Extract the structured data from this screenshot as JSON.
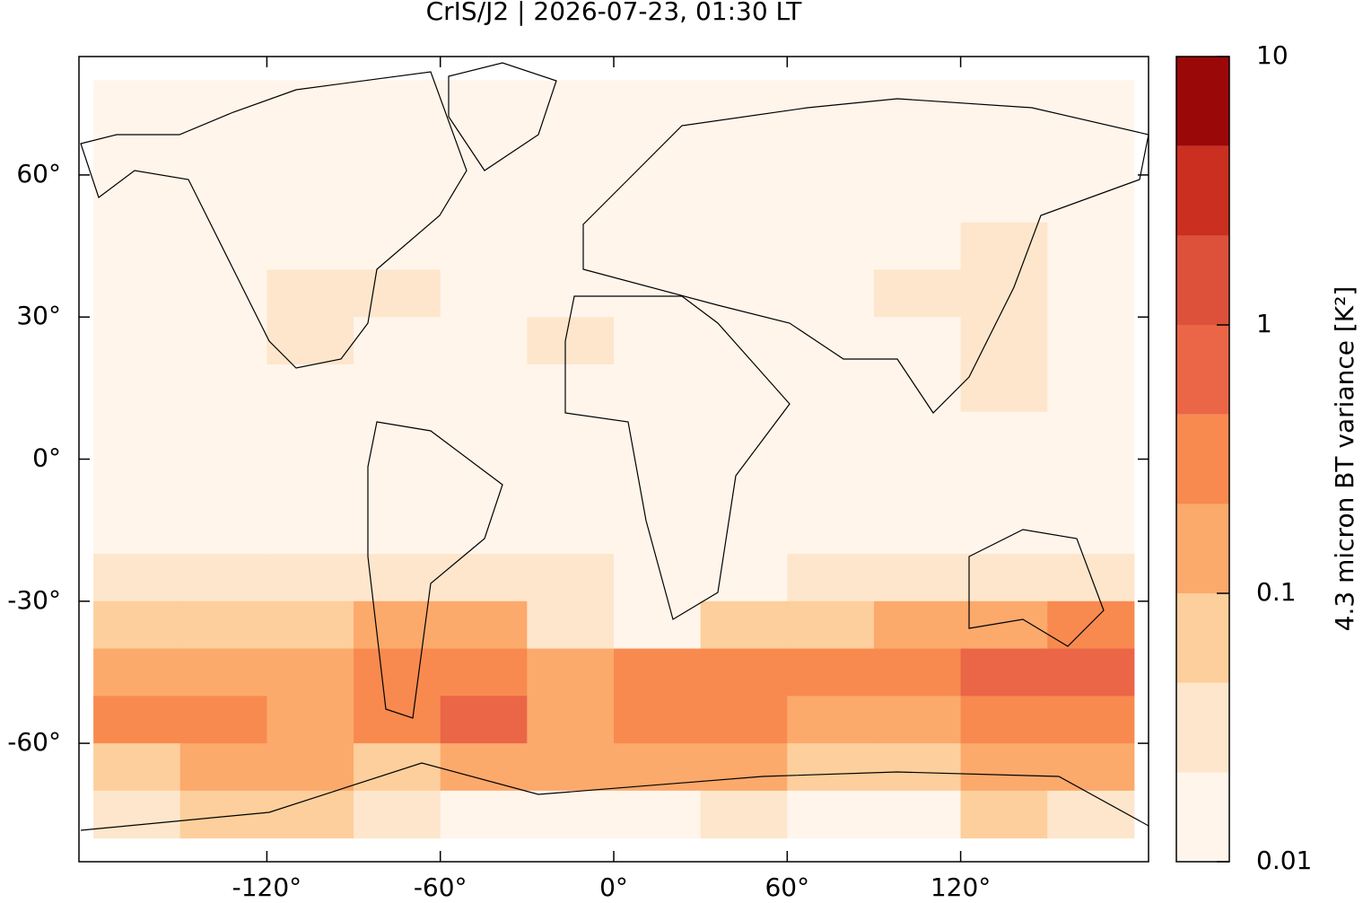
{
  "chart_data": {
    "type": "heatmap",
    "title": "CrIS/J2 | 2026-07-23, 01:30 LT",
    "colorbar_label": "4.3 micron BT variance [K²]",
    "xlim": [
      -185,
      185
    ],
    "ylim": [
      -85,
      85
    ],
    "xticks": [
      {
        "value": -120,
        "label": "-120°"
      },
      {
        "value": -60,
        "label": "-60°"
      },
      {
        "value": 0,
        "label": "0°"
      },
      {
        "value": 60,
        "label": "60°"
      },
      {
        "value": 120,
        "label": "120°"
      }
    ],
    "yticks": [
      {
        "value": 60,
        "label": "60°"
      },
      {
        "value": 30,
        "label": "30°"
      },
      {
        "value": 0,
        "label": "0°"
      },
      {
        "value": -30,
        "label": "-30°"
      },
      {
        "value": -60,
        "label": "-60°"
      }
    ],
    "clim": [
      0.01,
      10
    ],
    "cscale": "log",
    "cticks": [
      0.01,
      0.1,
      1,
      10
    ],
    "levels": [
      0.01,
      0.0215,
      0.0464,
      0.1,
      0.215,
      0.464,
      1,
      2.15,
      4.64,
      10
    ],
    "colors": [
      "#fff5eb",
      "#fde6cc",
      "#fdcf9c",
      "#fca96c",
      "#f88a4f",
      "#ea6646",
      "#dd513b",
      "#cb2f20",
      "#9a0808"
    ],
    "x": [
      -165,
      -135,
      -105,
      -75,
      -45,
      -15,
      15,
      45,
      75,
      105,
      135,
      165
    ],
    "y": [
      75,
      65,
      55,
      45,
      35,
      25,
      15,
      5,
      -5,
      -15,
      -25,
      -35,
      -45,
      -55,
      -65,
      -75
    ],
    "z": [
      [
        0.01,
        0.01,
        0.01,
        0.01,
        0.01,
        0.01,
        0.01,
        0.01,
        0.01,
        0.01,
        0.01,
        0.01
      ],
      [
        0.01,
        0.01,
        0.01,
        0.01,
        0.01,
        0.01,
        0.01,
        0.01,
        0.01,
        0.01,
        0.01,
        0.01
      ],
      [
        0.01,
        0.01,
        0.01,
        0.01,
        0.01,
        0.01,
        0.01,
        0.01,
        0.01,
        0.01,
        0.01,
        0.01
      ],
      [
        0.015,
        0.015,
        0.015,
        0.015,
        0.015,
        0.015,
        0.015,
        0.015,
        0.015,
        0.015,
        0.025,
        0.015
      ],
      [
        0.015,
        0.015,
        0.025,
        0.025,
        0.015,
        0.015,
        0.015,
        0.015,
        0.015,
        0.025,
        0.025,
        0.015
      ],
      [
        0.015,
        0.015,
        0.025,
        0.015,
        0.015,
        0.025,
        0.015,
        0.015,
        0.015,
        0.015,
        0.025,
        0.015
      ],
      [
        0.015,
        0.015,
        0.015,
        0.015,
        0.015,
        0.015,
        0.015,
        0.015,
        0.015,
        0.015,
        0.025,
        0.015
      ],
      [
        0.015,
        0.015,
        0.015,
        0.015,
        0.015,
        0.015,
        0.015,
        0.015,
        0.015,
        0.015,
        0.015,
        0.015
      ],
      [
        0.015,
        0.015,
        0.015,
        0.015,
        0.015,
        0.015,
        0.015,
        0.015,
        0.015,
        0.015,
        0.015,
        0.015
      ],
      [
        0.015,
        0.015,
        0.015,
        0.015,
        0.015,
        0.015,
        0.015,
        0.015,
        0.015,
        0.015,
        0.015,
        0.015
      ],
      [
        0.025,
        0.025,
        0.025,
        0.025,
        0.025,
        0.025,
        0.015,
        0.015,
        0.025,
        0.025,
        0.025,
        0.025
      ],
      [
        0.05,
        0.05,
        0.05,
        0.15,
        0.1,
        0.03,
        0.02,
        0.05,
        0.05,
        0.1,
        0.2,
        0.4
      ],
      [
        0.2,
        0.2,
        0.15,
        0.4,
        0.4,
        0.1,
        0.3,
        0.3,
        0.3,
        0.4,
        0.8,
        0.8
      ],
      [
        0.3,
        0.3,
        0.2,
        0.3,
        0.5,
        0.2,
        0.4,
        0.4,
        0.2,
        0.2,
        0.3,
        0.4
      ],
      [
        0.08,
        0.1,
        0.1,
        0.05,
        0.1,
        0.1,
        0.1,
        0.1,
        0.08,
        0.08,
        0.1,
        0.1
      ],
      [
        0.03,
        0.05,
        0.05,
        0.03,
        0.02,
        0.02,
        0.02,
        0.03,
        0.02,
        0.02,
        0.08,
        0.03
      ]
    ]
  }
}
